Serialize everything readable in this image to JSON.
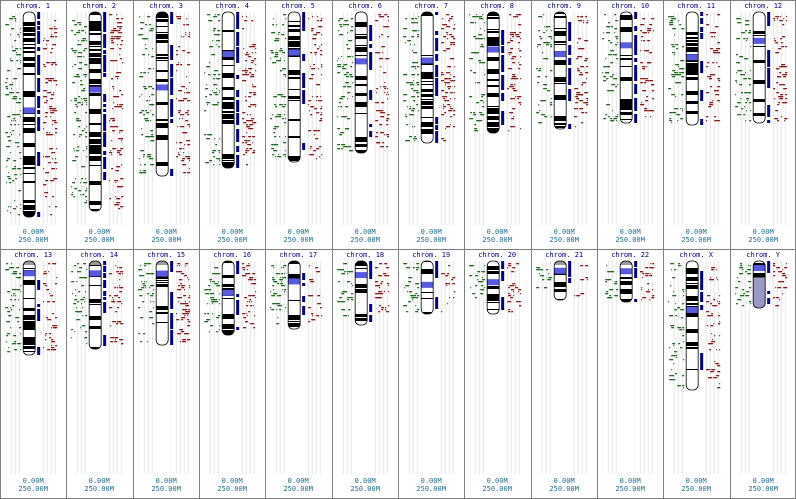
{
  "colors": {
    "left_track": "#1e6e1e",
    "right_track": "#8b1a1a",
    "hit_bar": "#00008b",
    "band_dark": "#000000",
    "band_light": "#ffffff",
    "centromere": "#5a5ae0",
    "heterochromatin": "#9a9ac8",
    "grid_line": "#d8d8d8",
    "cell_border": "#808080",
    "title": "#000080",
    "scale": "#1f6e8c"
  },
  "chromosomes": [
    {
      "title": "chrom. 1",
      "scale_min": "0.00M",
      "scale_max": "250.00M",
      "length": 1.0,
      "centromere": 0.48,
      "acrocentric": false,
      "variant": 0
    },
    {
      "title": "chrom. 2",
      "scale_min": "0.00M",
      "scale_max": "250.00M",
      "length": 0.97,
      "centromere": 0.39,
      "acrocentric": false,
      "variant": 1
    },
    {
      "title": "chrom. 3",
      "scale_min": "0.00M",
      "scale_max": "250.00M",
      "length": 0.8,
      "centromere": 0.46,
      "acrocentric": false,
      "variant": 2
    },
    {
      "title": "chrom. 4",
      "scale_min": "0.00M",
      "scale_max": "250.00M",
      "length": 0.76,
      "centromere": 0.27,
      "acrocentric": false,
      "variant": 3
    },
    {
      "title": "chrom. 5",
      "scale_min": "0.00M",
      "scale_max": "250.00M",
      "length": 0.73,
      "centromere": 0.27,
      "acrocentric": false,
      "variant": 4
    },
    {
      "title": "chrom. 6",
      "scale_min": "0.00M",
      "scale_max": "250.00M",
      "length": 0.69,
      "centromere": 0.35,
      "acrocentric": false,
      "variant": 5
    },
    {
      "title": "chrom. 7",
      "scale_min": "0.00M",
      "scale_max": "250.00M",
      "length": 0.64,
      "centromere": 0.37,
      "acrocentric": false,
      "variant": 6
    },
    {
      "title": "chrom. 8",
      "scale_min": "0.00M",
      "scale_max": "250.00M",
      "length": 0.59,
      "centromere": 0.31,
      "acrocentric": false,
      "variant": 7
    },
    {
      "title": "chrom. 9",
      "scale_min": "0.00M",
      "scale_max": "250.00M",
      "length": 0.57,
      "centromere": 0.36,
      "acrocentric": false,
      "variant": 8
    },
    {
      "title": "chrom. 10",
      "scale_min": "0.00M",
      "scale_max": "250.00M",
      "length": 0.54,
      "centromere": 0.3,
      "acrocentric": false,
      "variant": 9
    },
    {
      "title": "chrom. 11",
      "scale_min": "0.00M",
      "scale_max": "250.00M",
      "length": 0.55,
      "centromere": 0.4,
      "acrocentric": false,
      "variant": 10
    },
    {
      "title": "chrom. 12",
      "scale_min": "0.00M",
      "scale_max": "250.00M",
      "length": 0.54,
      "centromere": 0.26,
      "acrocentric": false,
      "variant": 11
    },
    {
      "title": "chrom. 13",
      "scale_min": "0.00M",
      "scale_max": "250.00M",
      "length": 0.46,
      "centromere": 0.13,
      "acrocentric": true,
      "variant": 12
    },
    {
      "title": "chrom. 14",
      "scale_min": "0.00M",
      "scale_max": "250.00M",
      "length": 0.43,
      "centromere": 0.14,
      "acrocentric": true,
      "variant": 13
    },
    {
      "title": "chrom. 15",
      "scale_min": "0.00M",
      "scale_max": "250.00M",
      "length": 0.41,
      "centromere": 0.15,
      "acrocentric": true,
      "variant": 14
    },
    {
      "title": "chrom. 16",
      "scale_min": "0.00M",
      "scale_max": "250.00M",
      "length": 0.36,
      "centromere": 0.43,
      "acrocentric": false,
      "variant": 15
    },
    {
      "title": "chrom. 17",
      "scale_min": "0.00M",
      "scale_max": "250.00M",
      "length": 0.33,
      "centromere": 0.3,
      "acrocentric": false,
      "variant": 16
    },
    {
      "title": "chrom. 18",
      "scale_min": "0.00M",
      "scale_max": "250.00M",
      "length": 0.31,
      "centromere": 0.22,
      "acrocentric": false,
      "variant": 17
    },
    {
      "title": "chrom. 19",
      "scale_min": "0.00M",
      "scale_max": "250.00M",
      "length": 0.26,
      "centromere": 0.45,
      "acrocentric": false,
      "variant": 18
    },
    {
      "title": "chrom. 20",
      "scale_min": "0.00M",
      "scale_max": "250.00M",
      "length": 0.26,
      "centromere": 0.4,
      "acrocentric": false,
      "variant": 19
    },
    {
      "title": "chrom. 21",
      "scale_min": "0.00M",
      "scale_max": "250.00M",
      "length": 0.19,
      "centromere": 0.25,
      "acrocentric": true,
      "variant": 20
    },
    {
      "title": "chrom. 22",
      "scale_min": "0.00M",
      "scale_max": "250.00M",
      "length": 0.2,
      "centromere": 0.25,
      "acrocentric": true,
      "variant": 21
    },
    {
      "title": "chrom. X",
      "scale_min": "0.00M",
      "scale_max": "250.00M",
      "length": 0.63,
      "centromere": 0.38,
      "acrocentric": false,
      "variant": 22
    },
    {
      "title": "chrom. Y",
      "scale_min": "0.00M",
      "scale_max": "250.00M",
      "length": 0.23,
      "centromere": 0.15,
      "acrocentric": false,
      "variant": 23,
      "heterochromatic_tail": true
    }
  ]
}
